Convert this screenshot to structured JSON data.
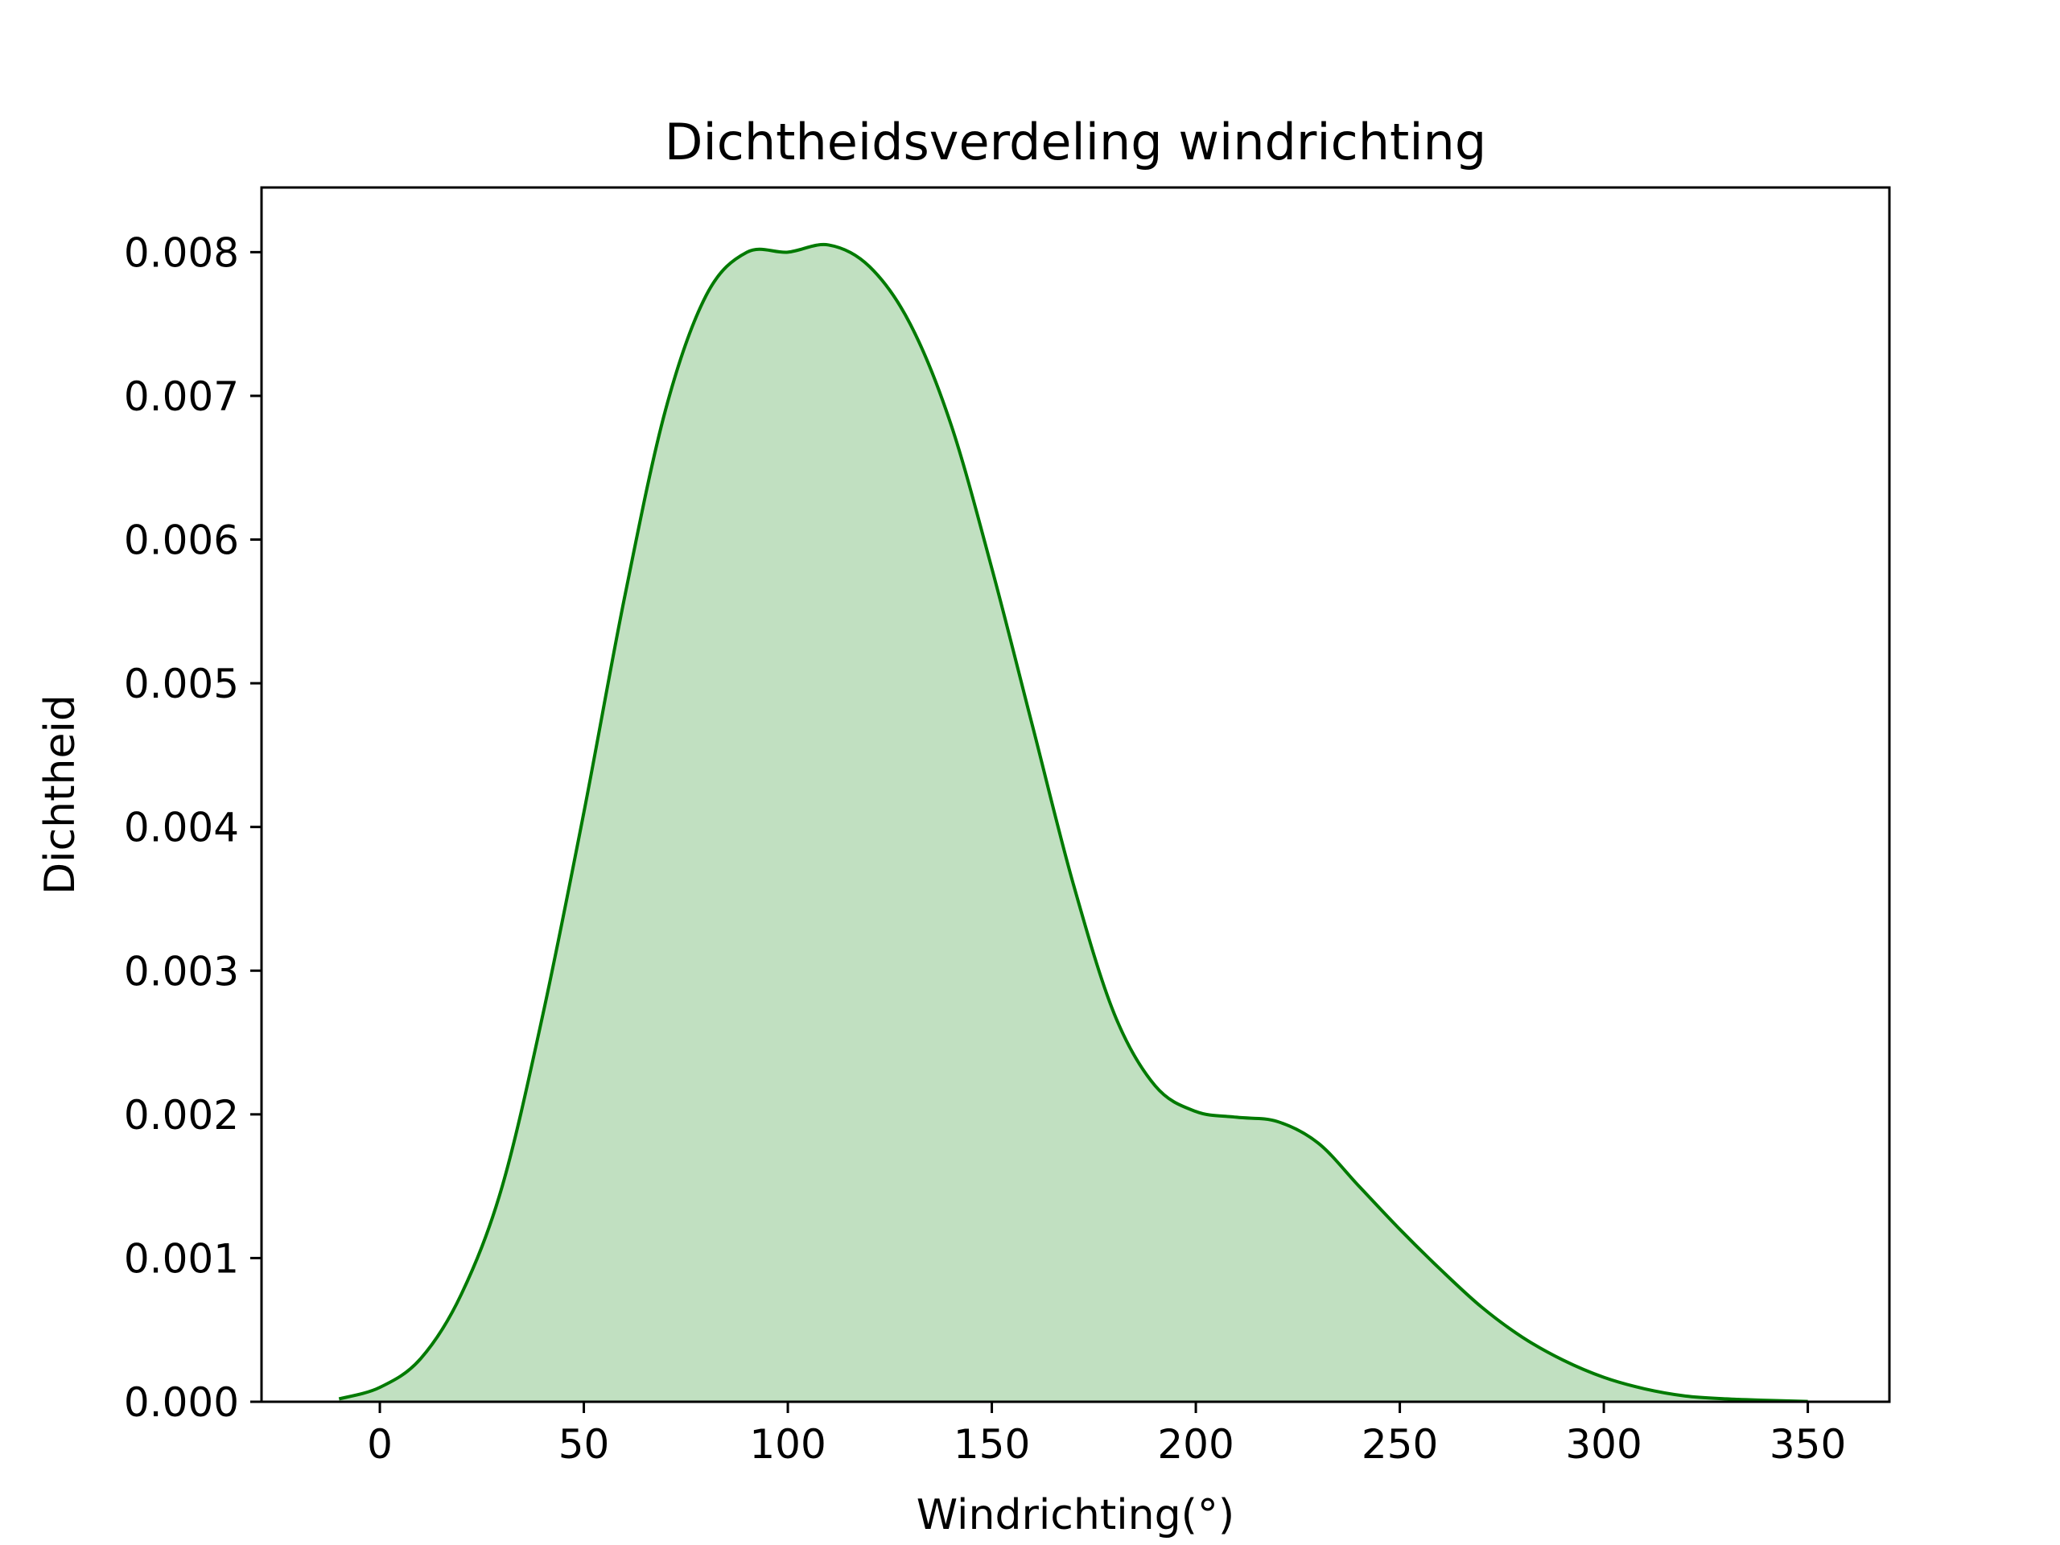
{
  "chart_data": {
    "type": "area",
    "title": "Dichtheidsverdeling windrichting",
    "xlabel": "Windrichting(°)",
    "ylabel": "Dichtheid",
    "xlim": [
      -29,
      370
    ],
    "ylim": [
      0,
      0.00845
    ],
    "xticks": [
      0,
      50,
      100,
      150,
      200,
      250,
      300,
      350
    ],
    "xtick_labels": [
      "0",
      "50",
      "100",
      "150",
      "200",
      "250",
      "300",
      "350"
    ],
    "yticks": [
      0,
      0.001,
      0.002,
      0.003,
      0.004,
      0.005,
      0.006,
      0.007,
      0.008
    ],
    "ytick_labels": [
      "0.000",
      "0.001",
      "0.002",
      "0.003",
      "0.004",
      "0.005",
      "0.006",
      "0.007",
      "0.008"
    ],
    "grid": false,
    "series": [
      {
        "line_color": "#007a00",
        "fill_color": "#c1e0c1",
        "x": [
          -10,
          0,
          10,
          20,
          30,
          40,
          50,
          60,
          70,
          80,
          90,
          100,
          110,
          120,
          130,
          140,
          150,
          160,
          170,
          180,
          190,
          200,
          210,
          220,
          230,
          240,
          250,
          260,
          270,
          280,
          290,
          300,
          310,
          320,
          330,
          340,
          350
        ],
        "y": [
          2e-05,
          0.0001,
          0.0003,
          0.00075,
          0.0015,
          0.0027,
          0.0041,
          0.0056,
          0.0069,
          0.0077,
          0.008,
          0.008,
          0.00805,
          0.0079,
          0.0075,
          0.0068,
          0.0058,
          0.0047,
          0.0036,
          0.0027,
          0.0022,
          0.00202,
          0.00198,
          0.00195,
          0.0018,
          0.0015,
          0.0012,
          0.00092,
          0.00066,
          0.00045,
          0.00029,
          0.00017,
          9e-05,
          4e-05,
          2e-05,
          1e-05,
          2e-06
        ]
      }
    ]
  }
}
